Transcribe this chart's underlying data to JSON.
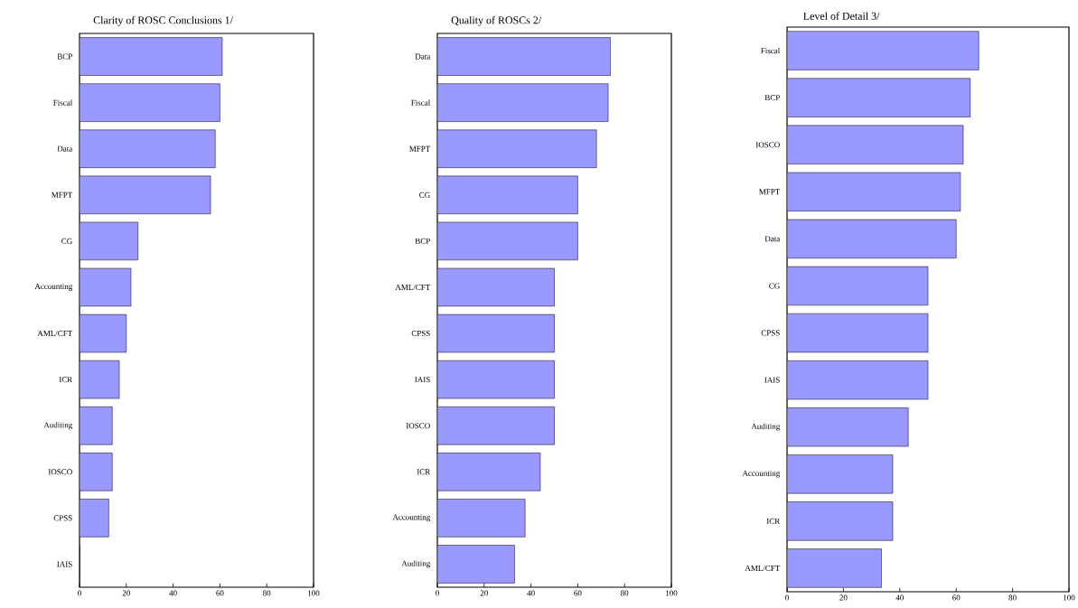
{
  "chart_data": [
    {
      "type": "bar",
      "orientation": "horizontal",
      "title": "Clarity of ROSC Conclusions 1/",
      "categories": [
        "BCP",
        "Fiscal",
        "Data",
        "MFPT",
        "CG",
        "Accounting",
        "AML/CFT",
        "ICR",
        "Auditing",
        "IOSCO",
        "CPSS",
        "IAIS"
      ],
      "values": [
        61,
        60,
        58,
        56,
        25,
        22,
        20,
        17,
        14,
        14,
        12.5,
        0
      ],
      "color": "#9999ff",
      "xlim": [
        0,
        100
      ],
      "xticks": [
        0,
        20,
        40,
        60,
        80,
        100
      ]
    },
    {
      "type": "bar",
      "orientation": "horizontal",
      "title": "Quality of ROSCs 2/",
      "categories": [
        "Data",
        "Fiscal",
        "MFPT",
        "CG",
        "BCP",
        "AML/CFT",
        "CPSS",
        "IAIS",
        "IOSCO",
        "ICR",
        "Accounting",
        "Auditing"
      ],
      "values": [
        74,
        73,
        68,
        60,
        60,
        50,
        50,
        50,
        50,
        44,
        37.5,
        33
      ],
      "color": "#9999ff",
      "xlim": [
        0,
        100
      ],
      "xticks": [
        0,
        20,
        40,
        60,
        80,
        100
      ]
    },
    {
      "type": "bar",
      "orientation": "horizontal",
      "title": "Level of Detail 3/",
      "categories": [
        "Fiscal",
        "BCP",
        "IOSCO",
        "MFPT",
        "Data",
        "CG",
        "CPSS",
        "IAIS",
        "Auditing",
        "Accounting",
        "ICR",
        "AML/CFT"
      ],
      "values": [
        68,
        65,
        62.5,
        61.5,
        60,
        50,
        50,
        50,
        43,
        37.5,
        37.5,
        33.5
      ],
      "color": "#9999ff",
      "xlim": [
        0,
        100
      ],
      "xticks": [
        0,
        20,
        40,
        60,
        80,
        100
      ]
    }
  ]
}
